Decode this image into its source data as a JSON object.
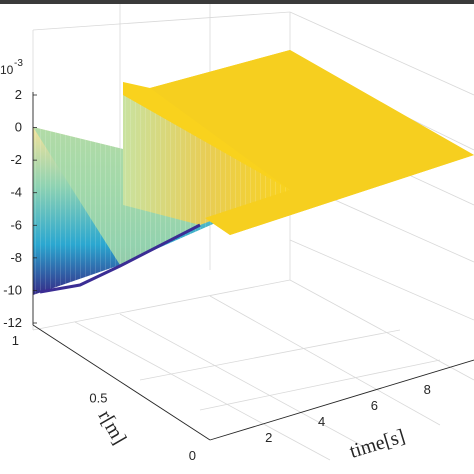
{
  "chart_data": {
    "type": "surface",
    "title": "",
    "axes": {
      "z": {
        "label": "",
        "exponent_label": "10",
        "exponent_power": "-3",
        "ticks": [
          "2",
          "0",
          "-2",
          "-4",
          "-6",
          "-8",
          "-10",
          "-12"
        ],
        "lim": [
          -12,
          2
        ]
      },
      "r": {
        "label": "r[m]",
        "ticks": [
          "0",
          "0.5",
          "1"
        ],
        "lim": [
          0,
          1
        ]
      },
      "time": {
        "label": "time[s]",
        "ticks": [
          "2",
          "4",
          "6",
          "8"
        ],
        "lim": [
          0,
          10
        ]
      }
    },
    "grid": true,
    "colormap": "parula",
    "surface_samples": [
      {
        "time": 0,
        "r": 1,
        "value": 0
      },
      {
        "time": 0,
        "r": 0,
        "value": -10.3
      },
      {
        "time": 2.2,
        "r": 0,
        "value": -9.5
      },
      {
        "time": 2.2,
        "r": 1,
        "value": 2.3
      },
      {
        "time": 6,
        "r": 0.5,
        "value": -4.6
      },
      {
        "time": 6,
        "r": 1,
        "value": 2.0
      },
      {
        "time": 10,
        "r": 0,
        "value": -1.5
      },
      {
        "time": 10,
        "r": 1,
        "value": 2.0
      }
    ],
    "colors": {
      "high": "#f9d21d",
      "mid_high": "#e9c83a",
      "mid": "#35b7a6",
      "mid_low": "#1f93d3",
      "low": "#3d2c9a",
      "grid": "#d9d9d9",
      "axis": "#262626"
    }
  }
}
